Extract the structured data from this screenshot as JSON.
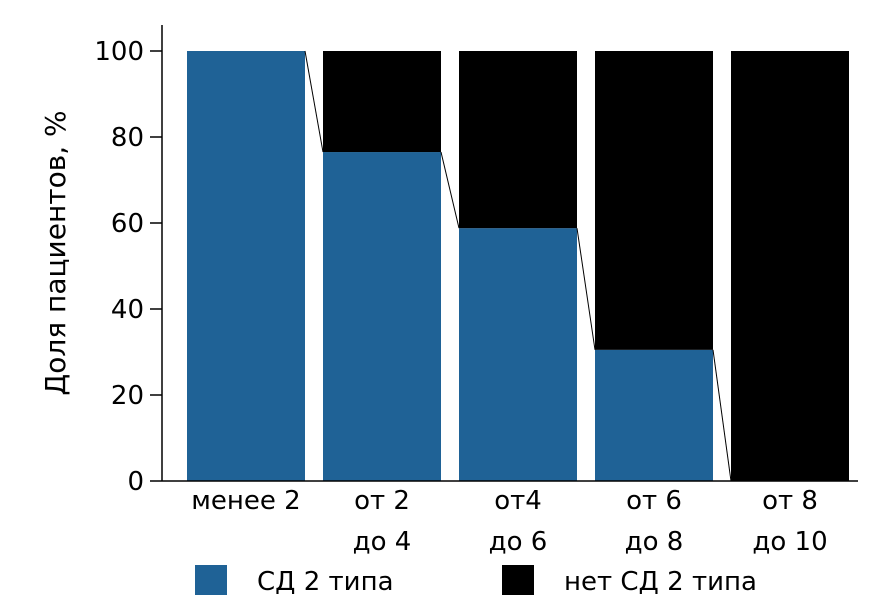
{
  "chart_data": {
    "type": "bar",
    "stacked": true,
    "categories": [
      [
        "менее 2"
      ],
      [
        "от 2",
        "до 4"
      ],
      [
        "от4",
        "до 6"
      ],
      [
        "от 6",
        "до 8"
      ],
      [
        "от 8",
        "до 10"
      ]
    ],
    "series": [
      {
        "name": "СД 2 типа",
        "color": "#1f6296",
        "values": [
          100,
          76.5,
          58.8,
          30.5,
          0
        ]
      },
      {
        "name": "нет СД 2 типа",
        "color": "#000000",
        "values": [
          0,
          23.5,
          41.2,
          69.5,
          100
        ]
      }
    ],
    "ylabel": "Доля пациентов, %",
    "xlabel": "",
    "ylim": [
      0,
      100
    ],
    "yticks": [
      0,
      20,
      40,
      60,
      80,
      100
    ],
    "grid": false,
    "connector_lines": true,
    "legend": "bottom"
  }
}
